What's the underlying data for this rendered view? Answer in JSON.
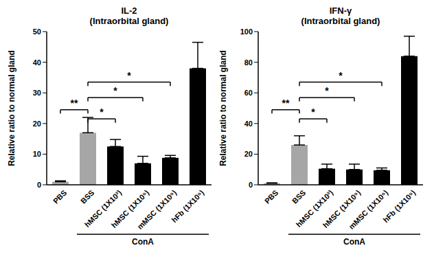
{
  "chart_data": [
    {
      "type": "bar",
      "title": "IL-2",
      "subtitle": "(Intraorbital gland)",
      "y_label": "Relative ratio to normal gland",
      "categories": [
        "PBS",
        "BSS",
        "hMSC (1X10³)",
        "hMSC (1X10⁵)",
        "mMSC (1X10⁵)",
        "hFb (1X10⁵)"
      ],
      "values": [
        1,
        17,
        12.5,
        7,
        8.8,
        38
      ],
      "errors": [
        0.3,
        5,
        2.3,
        2.3,
        0.8,
        8.5
      ],
      "colors": [
        "#a6a6a6",
        "#a6a6a6",
        "#000000",
        "#000000",
        "#000000",
        "#000000"
      ],
      "ylim": [
        0,
        50
      ],
      "yticks": [
        0,
        10,
        20,
        30,
        40,
        50
      ],
      "annotations": [
        {
          "text": "ConA",
          "from": "BSS",
          "to": "hFb (1X10⁵)"
        }
      ],
      "significance": [
        {
          "from": "PBS",
          "to": "BSS",
          "label": "**"
        },
        {
          "from": "BSS",
          "to": "hMSC (1X10³)",
          "label": "*"
        },
        {
          "from": "BSS",
          "to": "hMSC (1X10⁵)",
          "label": "*"
        },
        {
          "from": "BSS",
          "to": "mMSC (1X10⁵)",
          "label": "*"
        }
      ]
    },
    {
      "type": "bar",
      "title": "IFN-γ",
      "subtitle": "(Intraorbital gland)",
      "y_label": "Relative ratio to normal gland",
      "categories": [
        "PBS",
        "BSS",
        "hMSC (1X10³)",
        "hMSC (1X10⁵)",
        "mMSC (1X10⁵)",
        "hFb (1X10⁵)"
      ],
      "values": [
        1,
        26,
        10.5,
        10,
        9.5,
        84
      ],
      "errors": [
        0.3,
        6,
        3,
        3.5,
        1.5,
        13
      ],
      "colors": [
        "#a6a6a6",
        "#a6a6a6",
        "#000000",
        "#000000",
        "#000000",
        "#000000"
      ],
      "ylim": [
        0,
        100
      ],
      "yticks": [
        0,
        20,
        40,
        60,
        80,
        100
      ],
      "annotations": [
        {
          "text": "ConA",
          "from": "BSS",
          "to": "hFb (1X10⁵)"
        }
      ],
      "significance": [
        {
          "from": "PBS",
          "to": "BSS",
          "label": "**"
        },
        {
          "from": "BSS",
          "to": "hMSC (1X10³)",
          "label": "*"
        },
        {
          "from": "BSS",
          "to": "hMSC (1X10⁵)",
          "label": "*"
        },
        {
          "from": "BSS",
          "to": "mMSC (1X10⁵)",
          "label": "*"
        }
      ]
    }
  ]
}
